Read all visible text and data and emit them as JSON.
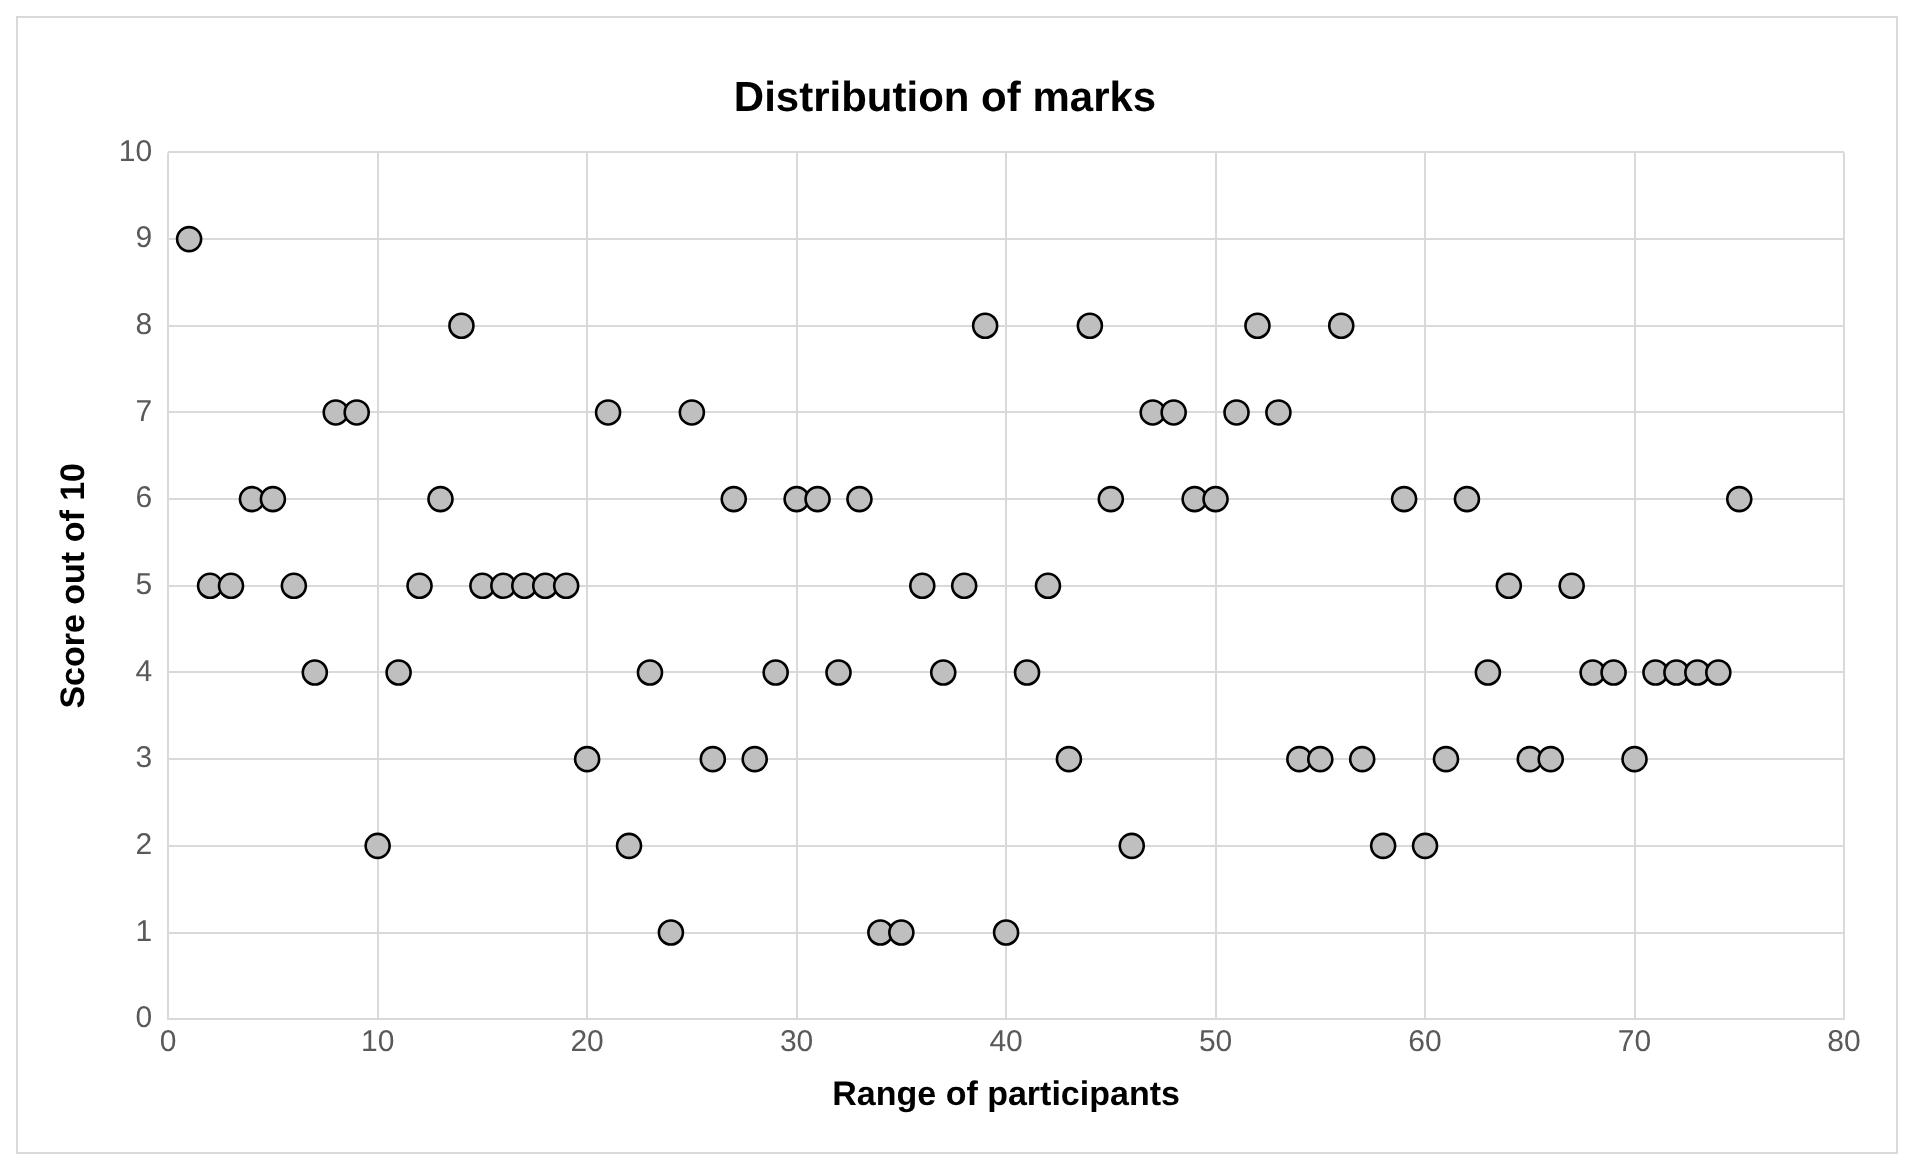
{
  "chart_data": {
    "type": "scatter",
    "title": "Distribution of marks",
    "xlabel": "Range of participants",
    "ylabel": "Score out of 10",
    "x": [
      1,
      2,
      3,
      4,
      5,
      6,
      7,
      8,
      9,
      10,
      11,
      12,
      13,
      14,
      15,
      16,
      17,
      18,
      19,
      20,
      21,
      22,
      23,
      24,
      25,
      26,
      27,
      28,
      29,
      30,
      31,
      32,
      33,
      34,
      35,
      36,
      37,
      38,
      39,
      40,
      41,
      42,
      43,
      44,
      45,
      46,
      47,
      48,
      49,
      50,
      51,
      52,
      53,
      54,
      55,
      56,
      57,
      58,
      59,
      60,
      61,
      62,
      63,
      64,
      65,
      66,
      67,
      68,
      69,
      70,
      71,
      72,
      73,
      74,
      75
    ],
    "series": [
      {
        "color": "#bfbfbf",
        "values": [
          9,
          5,
          5,
          6,
          6,
          5,
          4,
          7,
          7,
          2,
          4,
          5,
          6,
          8,
          5,
          5,
          5,
          5,
          5,
          3,
          7,
          2,
          4,
          1,
          7,
          3,
          6,
          3,
          4,
          6,
          6,
          4,
          6,
          1,
          1,
          5,
          4,
          5,
          8,
          1,
          4,
          5,
          3,
          8,
          6,
          2,
          7,
          7,
          6,
          6,
          7,
          8,
          7,
          3,
          3,
          8,
          3,
          2,
          6,
          2,
          3,
          6,
          4,
          5,
          3,
          3,
          5,
          4,
          4,
          3,
          4,
          4,
          4,
          4,
          6
        ]
      }
    ],
    "xlim": [
      0,
      80
    ],
    "xticks": [
      0,
      10,
      20,
      30,
      40,
      50,
      60,
      70,
      80
    ],
    "ylim": [
      0,
      10
    ],
    "yticks": [
      0,
      1,
      2,
      3,
      4,
      5,
      6,
      7,
      8,
      9,
      10
    ],
    "grid": true,
    "legend": false,
    "marker": "circle"
  }
}
